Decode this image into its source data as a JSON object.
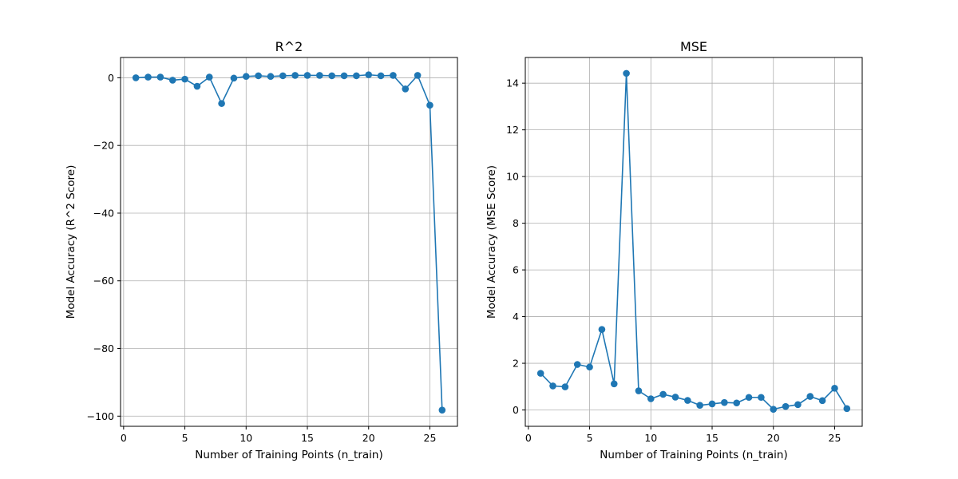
{
  "figure": {
    "background": "#ffffff",
    "series_color": "#1f77b4",
    "grid_color": "#b0b0b0"
  },
  "chart_data": [
    {
      "type": "line",
      "title": "R^2",
      "xlabel": "Number of Training Points (n_train)",
      "ylabel": "Model Accuracy (R^2 Score)",
      "xlim": [
        -0.25,
        27.25
      ],
      "ylim": [
        -103,
        6
      ],
      "xticks": [
        0,
        5,
        10,
        15,
        20,
        25
      ],
      "xtick_labels": [
        "0",
        "5",
        "10",
        "15",
        "20",
        "25"
      ],
      "yticks": [
        0,
        -20,
        -40,
        -60,
        -80,
        -100
      ],
      "ytick_labels": [
        "0",
        "−20",
        "−40",
        "−60",
        "−80",
        "−100"
      ],
      "grid": true,
      "marker": "circle",
      "x": [
        1,
        2,
        3,
        4,
        5,
        6,
        7,
        8,
        9,
        10,
        11,
        12,
        13,
        14,
        15,
        16,
        17,
        18,
        19,
        20,
        21,
        22,
        23,
        24,
        25,
        26
      ],
      "y": [
        0.0,
        0.2,
        0.2,
        -0.7,
        -0.4,
        -2.5,
        0.2,
        -7.6,
        -0.1,
        0.4,
        0.6,
        0.4,
        0.6,
        0.7,
        0.7,
        0.7,
        0.6,
        0.6,
        0.6,
        0.9,
        0.6,
        0.7,
        -3.3,
        0.7,
        -8.1,
        -98.2
      ]
    },
    {
      "type": "line",
      "title": "MSE",
      "xlabel": "Number of Training Points (n_train)",
      "ylabel": "Model Accuracy (MSE Score)",
      "xlim": [
        -0.25,
        27.25
      ],
      "ylim": [
        -0.7,
        15.1
      ],
      "xticks": [
        0,
        5,
        10,
        15,
        20,
        25
      ],
      "xtick_labels": [
        "0",
        "5",
        "10",
        "15",
        "20",
        "25"
      ],
      "yticks": [
        0,
        2,
        4,
        6,
        8,
        10,
        12,
        14
      ],
      "ytick_labels": [
        "0",
        "2",
        "4",
        "6",
        "8",
        "10",
        "12",
        "14"
      ],
      "grid": true,
      "marker": "circle",
      "x": [
        1,
        2,
        3,
        4,
        5,
        6,
        7,
        8,
        9,
        10,
        11,
        12,
        13,
        14,
        15,
        16,
        17,
        18,
        19,
        20,
        21,
        22,
        23,
        24,
        25,
        26
      ],
      "y": [
        1.57,
        1.03,
        0.99,
        1.95,
        1.84,
        3.45,
        1.12,
        14.42,
        0.82,
        0.48,
        0.67,
        0.55,
        0.41,
        0.2,
        0.26,
        0.32,
        0.3,
        0.54,
        0.54,
        0.03,
        0.15,
        0.23,
        0.58,
        0.4,
        0.93,
        0.06
      ]
    }
  ]
}
